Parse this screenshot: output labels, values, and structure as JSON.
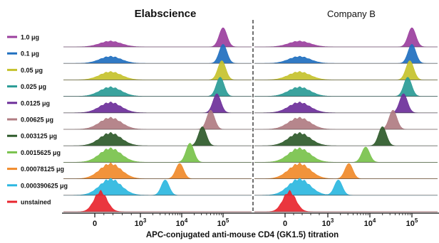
{
  "chart_data": {
    "type": "histogram-overlay",
    "panels": [
      {
        "title": "Elabscience"
      },
      {
        "title": "Company B"
      }
    ],
    "xlabel": "APC-conjugated anti-mouse CD4 (GK1.5) titration",
    "x_ticks": [
      {
        "value": 0,
        "base": "0",
        "exp": ""
      },
      {
        "value": 3,
        "base": "10",
        "exp": "3"
      },
      {
        "value": 4,
        "base": "10",
        "exp": "4"
      },
      {
        "value": 5,
        "base": "10",
        "exp": "5"
      }
    ],
    "series": [
      {
        "name": "1.0 μg",
        "color": "#9b3f9e",
        "elab_pos_log10": 5.0,
        "compb_pos_log10": 5.0
      },
      {
        "name": "0.1 μg",
        "color": "#1f6fbf",
        "elab_pos_log10": 5.0,
        "compb_pos_log10": 5.0
      },
      {
        "name": "0.05 μg",
        "color": "#c5c22d",
        "elab_pos_log10": 4.97,
        "compb_pos_log10": 4.95
      },
      {
        "name": "0.025 μg",
        "color": "#2a9b96",
        "elab_pos_log10": 4.93,
        "compb_pos_log10": 4.9
      },
      {
        "name": "0.0125 μg",
        "color": "#6d2f9a",
        "elab_pos_log10": 4.85,
        "compb_pos_log10": 4.8
      },
      {
        "name": "0.00625 μg",
        "color": "#b07c82",
        "elab_pos_log10": 4.7,
        "compb_pos_log10": 4.55
      },
      {
        "name": "0.003125 μg",
        "color": "#2e5a2a",
        "elab_pos_log10": 4.5,
        "compb_pos_log10": 4.3
      },
      {
        "name": "0.0015625 μg",
        "color": "#78c24b",
        "elab_pos_log10": 4.2,
        "compb_pos_log10": 3.9
      },
      {
        "name": "0.00078125 μg",
        "color": "#f08a2a",
        "elab_pos_log10": 3.95,
        "compb_pos_log10": 3.5
      },
      {
        "name": "0.000390625 μg",
        "color": "#2bb7e0",
        "elab_pos_log10": 3.6,
        "compb_pos_log10": 3.25
      },
      {
        "name": "unstained",
        "color": "#e8252e",
        "elab_pos_log10": null,
        "compb_pos_log10": null
      }
    ]
  }
}
